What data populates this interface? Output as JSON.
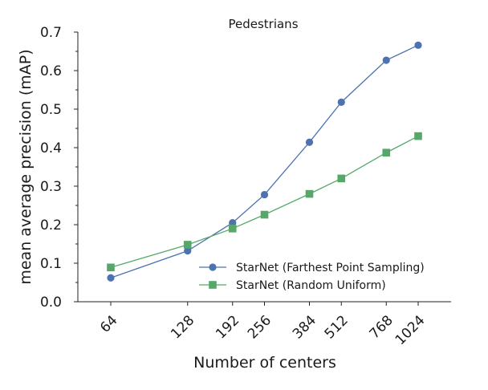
{
  "chart_data": {
    "type": "line",
    "title": "Pedestrians",
    "xlabel": "Number of centers",
    "ylabel": "mean average precision (mAP)",
    "x_scale": "log2",
    "x": [
      64,
      128,
      192,
      256,
      384,
      512,
      768,
      1024
    ],
    "x_tick_labels": [
      "64",
      "128",
      "192",
      "256",
      "384",
      "512",
      "768",
      "1024"
    ],
    "ylim": [
      0.0,
      0.7
    ],
    "y_ticks": [
      0.0,
      0.1,
      0.2,
      0.3,
      0.4,
      0.5,
      0.6,
      0.7
    ],
    "y_tick_labels": [
      "0.0",
      "0.1",
      "0.2",
      "0.3",
      "0.4",
      "0.5",
      "0.6",
      "0.7"
    ],
    "grid": false,
    "legend_position": "lower-right",
    "series": [
      {
        "name": "StarNet (Farthest Point Sampling)",
        "marker": "circle",
        "color": "#4c72b0",
        "values": [
          0.062,
          0.132,
          0.205,
          0.278,
          0.414,
          0.518,
          0.627,
          0.666
        ]
      },
      {
        "name": "StarNet (Random Uniform)",
        "marker": "square",
        "color": "#55a868",
        "values": [
          0.089,
          0.148,
          0.19,
          0.226,
          0.28,
          0.32,
          0.387,
          0.43
        ]
      }
    ]
  }
}
